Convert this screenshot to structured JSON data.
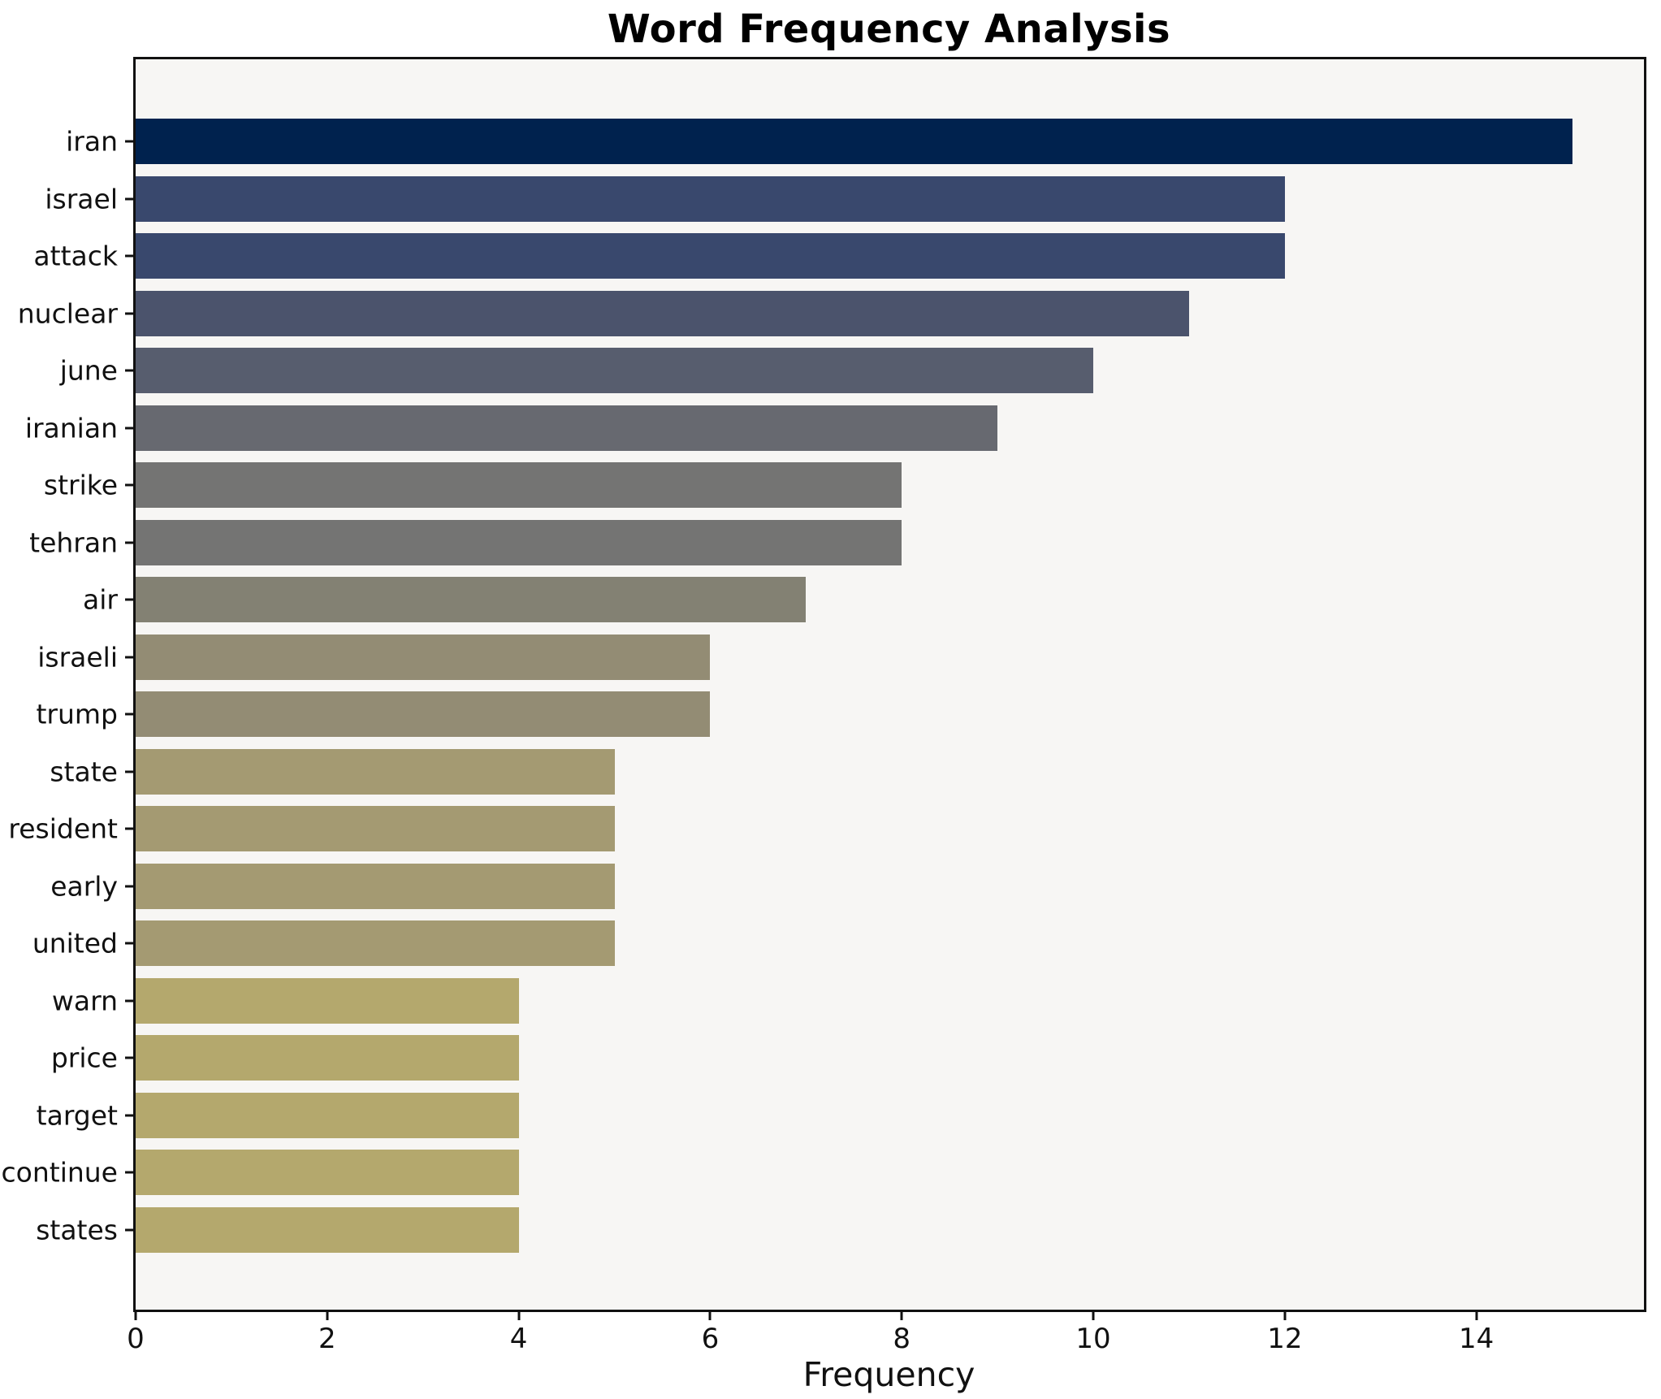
{
  "page": {
    "title": "Word Frequency Analysis"
  },
  "chart_data": {
    "type": "bar",
    "orientation": "horizontal",
    "title": "Word Frequency Analysis",
    "xlabel": "Frequency",
    "ylabel": "",
    "categories": [
      "iran",
      "israel",
      "attack",
      "nuclear",
      "june",
      "iranian",
      "strike",
      "tehran",
      "air",
      "israeli",
      "trump",
      "state",
      "resident",
      "early",
      "united",
      "warn",
      "price",
      "target",
      "continue",
      "states"
    ],
    "values": [
      15,
      12,
      12,
      11,
      10,
      9,
      8,
      8,
      7,
      6,
      6,
      5,
      5,
      5,
      5,
      4,
      4,
      4,
      4,
      4
    ],
    "bar_colors": [
      "#00224e",
      "#39486d",
      "#39486d",
      "#4b536c",
      "#575d6e",
      "#676970",
      "#747473",
      "#747473",
      "#838173",
      "#938c74",
      "#938c74",
      "#a49a72",
      "#a49a72",
      "#a49a72",
      "#a49a72",
      "#b4a86d",
      "#b4a86d",
      "#b4a86d",
      "#b4a86d",
      "#b4a86d"
    ],
    "x_ticks": [
      0,
      2,
      4,
      6,
      8,
      10,
      12,
      14
    ],
    "xlim": [
      0,
      15.75
    ],
    "grid": false,
    "legend": null,
    "plot_background": "#f7f6f4",
    "spine_color": "#111111"
  }
}
